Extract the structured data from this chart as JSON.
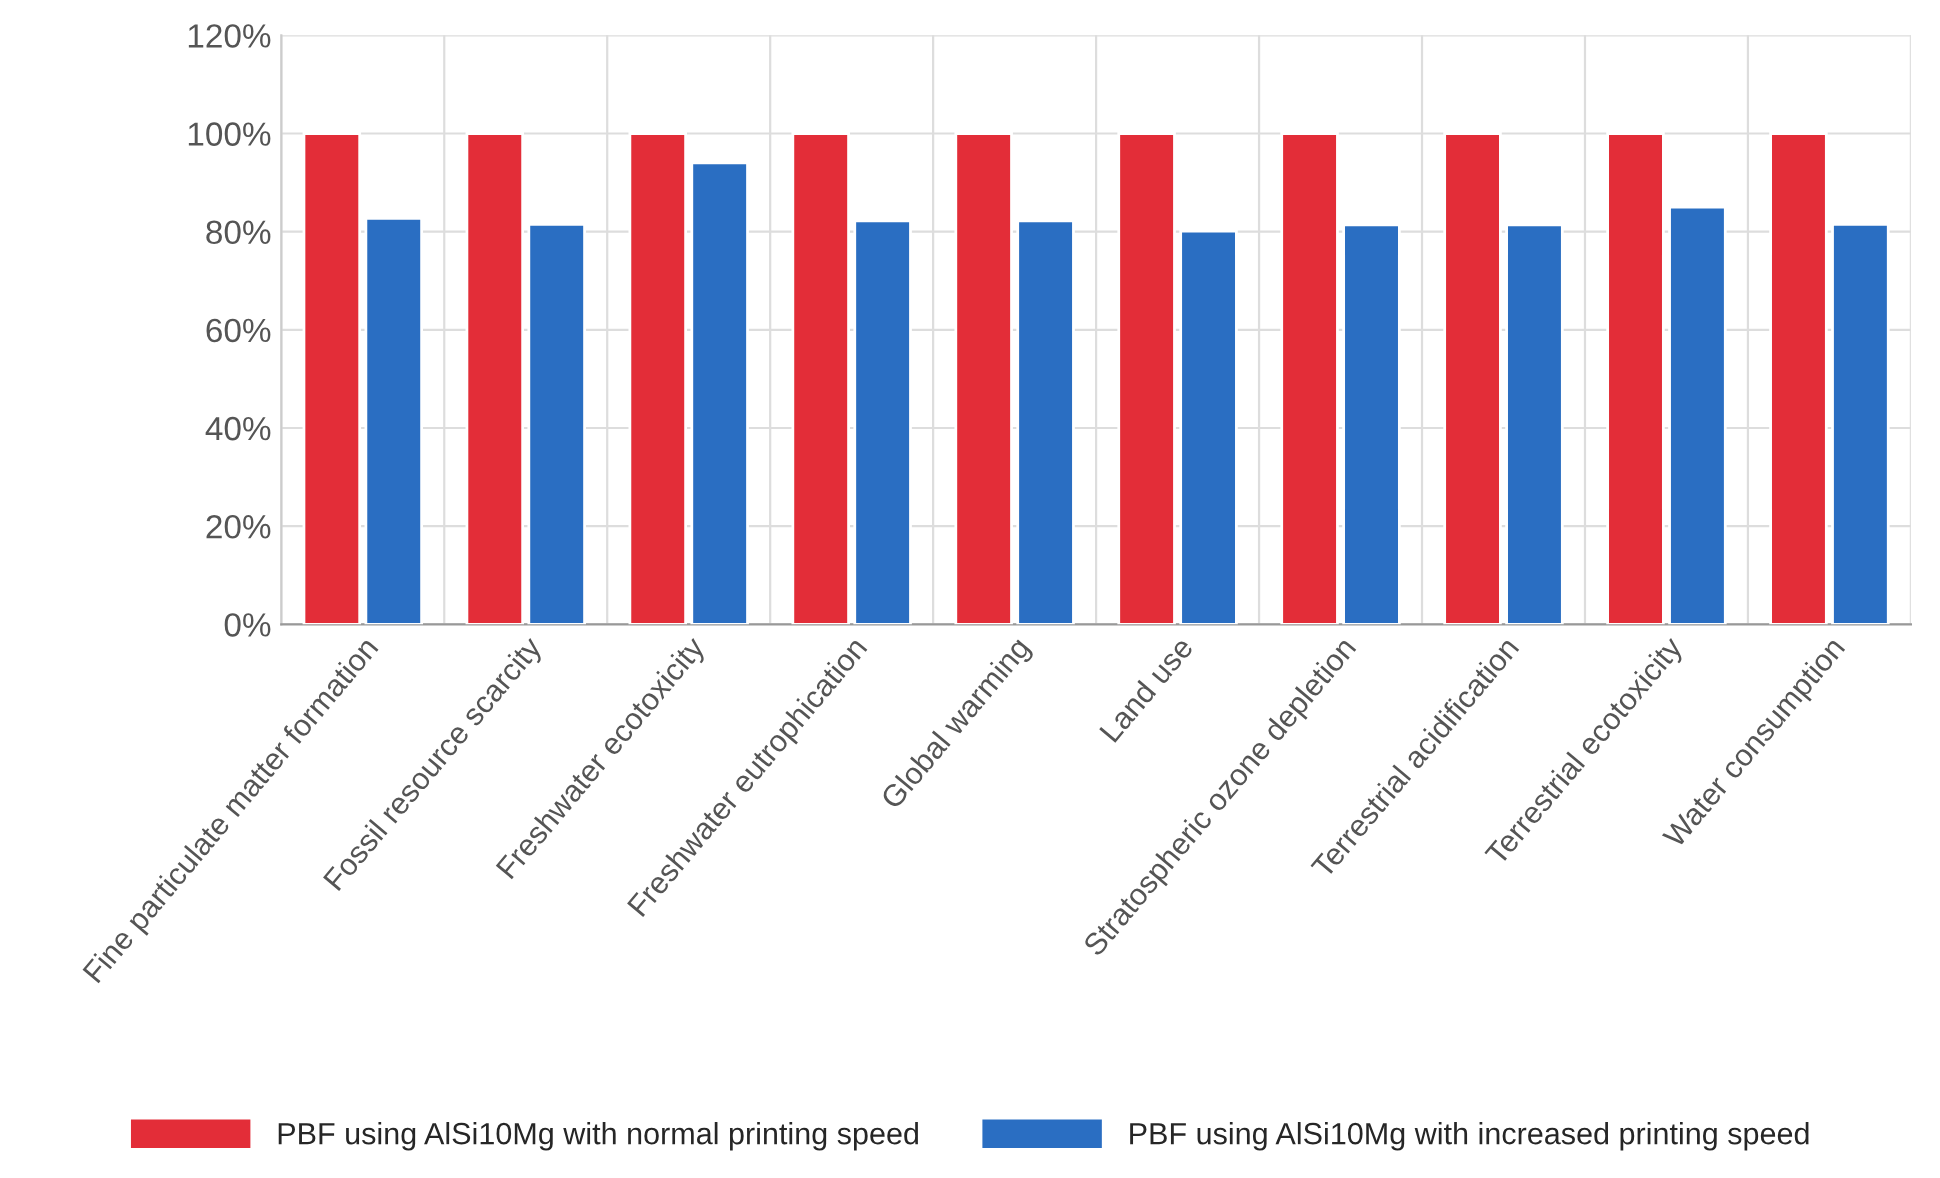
{
  "chart_data": {
    "type": "bar",
    "categories": [
      "Fine particulate matter formation",
      "Fossil resource scarcity",
      "Freshwater ecotoxicity",
      "Freshwater eutrophication",
      "Global warming",
      "Land use",
      "Stratospheric ozone depletion",
      "Terrestrial acidification",
      "Terrestrial ecotoxicity",
      "Water consumption"
    ],
    "series": [
      {
        "name": "PBF using AlSi10Mg with normal printing speed",
        "color": "#e32d38",
        "values": [
          100,
          100,
          100,
          100,
          100,
          100,
          100,
          100,
          100,
          100
        ]
      },
      {
        "name": "PBF using AlSi10Mg with increased printing speed",
        "color": "#2a6ec2",
        "values": [
          82.7,
          81.5,
          94.0,
          82.2,
          82.2,
          80.1,
          81.4,
          81.4,
          85.0,
          81.5
        ]
      }
    ],
    "ylim": [
      0,
      120
    ],
    "yticks": [
      {
        "value": 0,
        "label": "0%"
      },
      {
        "value": 20,
        "label": "20%"
      },
      {
        "value": 40,
        "label": "40%"
      },
      {
        "value": 60,
        "label": "60%"
      },
      {
        "value": 80,
        "label": "80%"
      },
      {
        "value": 100,
        "label": "100%"
      },
      {
        "value": 120,
        "label": "120%"
      }
    ],
    "grid": true,
    "legend": "bottom"
  }
}
